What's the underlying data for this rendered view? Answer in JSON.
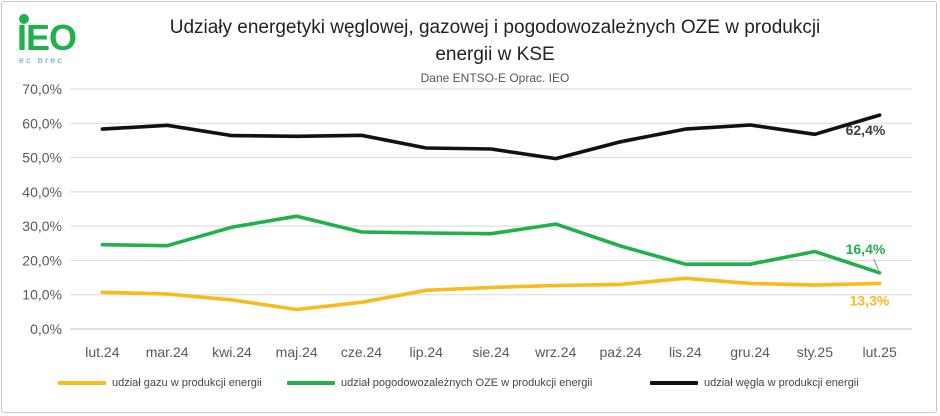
{
  "logo": {
    "text": "IEO",
    "subtext": "ec brec"
  },
  "colors": {
    "gas": "#f9bb1c",
    "oze": "#20b14b",
    "coal": "#111111"
  },
  "chart_data": {
    "type": "line",
    "title_line1": "Udziały energetyki węglowej, gazowej i pogodowozależnych OZE w produkcji",
    "title_line2": "energii w  KSE",
    "subtitle": "Dane ENTSO-E Oprac. IEO",
    "xlabel": "",
    "ylabel": "",
    "categories": [
      "lut.24",
      "mar.24",
      "kwi.24",
      "maj.24",
      "cze.24",
      "lip.24",
      "sie.24",
      "wrz.24",
      "paź.24",
      "lis.24",
      "gru.24",
      "sty.25",
      "lut.25"
    ],
    "ylim": [
      0,
      70
    ],
    "yticks": [
      "0,0%",
      "10,0%",
      "20,0%",
      "30,0%",
      "40,0%",
      "50,0%",
      "60,0%",
      "70,0%"
    ],
    "grid": true,
    "legend_position": "bottom",
    "series": [
      {
        "key": "gas",
        "name": "udział gazu w produkcji energii",
        "values": [
          10.7,
          10.2,
          8.5,
          5.7,
          7.8,
          11.3,
          12.1,
          12.7,
          13.0,
          14.8,
          13.3,
          12.8,
          13.3
        ],
        "end_label": "13,3%"
      },
      {
        "key": "oze",
        "name": "udział pogodowozależnych OZE w produkcji  energii",
        "values": [
          24.6,
          24.3,
          29.7,
          32.9,
          28.3,
          28.0,
          27.8,
          30.6,
          24.2,
          18.9,
          18.9,
          22.6,
          16.4
        ],
        "end_label": "16,4%"
      },
      {
        "key": "coal",
        "name": "udział węgla w produkcji energii",
        "values": [
          58.3,
          59.4,
          56.4,
          56.2,
          56.5,
          52.8,
          52.5,
          49.7,
          54.6,
          58.3,
          59.5,
          56.8,
          62.4
        ],
        "end_label": "62,4%"
      }
    ]
  }
}
